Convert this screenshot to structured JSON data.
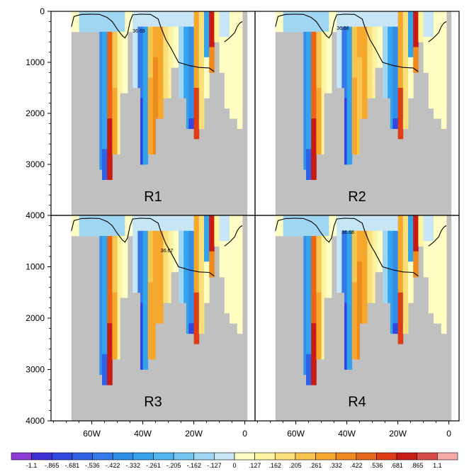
{
  "chart_data": {
    "type": "heatmap",
    "panels": [
      {
        "label": "R1",
        "contour_label": "36.69"
      },
      {
        "label": "R2",
        "contour_label": "36.68"
      },
      {
        "label": "R3",
        "contour_label": "36.67"
      },
      {
        "label": "R4",
        "contour_label": "36.68"
      }
    ],
    "x_ticks": [
      "60W",
      "40W",
      "20W",
      "0"
    ],
    "x_tick_values": [
      -60,
      -40,
      -20,
      0
    ],
    "xlim": [
      -76,
      4
    ],
    "y_ticks": [
      "0",
      "1000",
      "2000",
      "3000",
      "4000"
    ],
    "y_tick_values": [
      0,
      1000,
      2000,
      3000,
      4000
    ],
    "ylim": [
      0,
      4000
    ],
    "y_reversed": true,
    "colorbar": {
      "labels": [
        "-1.1",
        "-.865",
        "-.681",
        "-.536",
        "-.422",
        "-.332",
        "-.261",
        "-.205",
        "-.162",
        "-.127",
        "0",
        ".127",
        ".162",
        ".205",
        ".261",
        ".332",
        ".422",
        ".536",
        ".681",
        ".865",
        "1.1"
      ],
      "colors": [
        "#8c3dd6",
        "#3b2fd6",
        "#3048e0",
        "#2f62e6",
        "#3579e8",
        "#2f8ee8",
        "#35a3ec",
        "#4fb6ee",
        "#74c5f0",
        "#a0d6f2",
        "#c6e6f6",
        "#fefec4",
        "#fdf3a0",
        "#fbe079",
        "#f8c54e",
        "#f5a82d",
        "#ef8a1f",
        "#e8661a",
        "#de3d17",
        "#c81b13",
        "#d94b4b",
        "#f5aaa8"
      ]
    },
    "land_color": "#c0c0c0",
    "bottom_depth_segments": [
      {
        "x": [
          -68,
          -57
        ],
        "depth": 400
      },
      {
        "x": [
          -57,
          -56
        ],
        "depth": 3100
      },
      {
        "x": [
          -56,
          -52
        ],
        "depth": 3250
      },
      {
        "x": [
          -52,
          -49
        ],
        "depth": 2800
      },
      {
        "x": [
          -49,
          -46
        ],
        "depth": 1600
      },
      {
        "x": [
          -46,
          -44
        ],
        "depth": 400
      },
      {
        "x": [
          -44,
          -41
        ],
        "depth": 1500
      },
      {
        "x": [
          -41,
          -38
        ],
        "depth": 3000
      },
      {
        "x": [
          -38,
          -35
        ],
        "depth": 2800
      },
      {
        "x": [
          -35,
          -32
        ],
        "depth": 2100
      },
      {
        "x": [
          -32,
          -29
        ],
        "depth": 1700
      },
      {
        "x": [
          -29,
          -26
        ],
        "depth": 1100
      },
      {
        "x": [
          -26,
          -23
        ],
        "depth": 1700
      },
      {
        "x": [
          -23,
          -20
        ],
        "depth": 2300
      },
      {
        "x": [
          -20,
          -18
        ],
        "depth": 2500
      },
      {
        "x": [
          -18,
          -16
        ],
        "depth": 2300
      },
      {
        "x": [
          -16,
          -14
        ],
        "depth": 1700
      },
      {
        "x": [
          -14,
          -12
        ],
        "depth": 1200
      },
      {
        "x": [
          -12,
          -10
        ],
        "depth": 600
      },
      {
        "x": [
          -10,
          -8
        ],
        "depth": 1200
      },
      {
        "x": [
          -8,
          -6
        ],
        "depth": 1900
      },
      {
        "x": [
          -6,
          -3
        ],
        "depth": 2100
      },
      {
        "x": [
          -3,
          -1
        ],
        "depth": 2300
      }
    ],
    "contour_line": [
      [
        -68,
        300
      ],
      [
        -67,
        100
      ],
      [
        -64,
        60
      ],
      [
        -60,
        55
      ],
      [
        -57,
        60
      ],
      [
        -54,
        120
      ],
      [
        -52,
        200
      ],
      [
        -50,
        350
      ],
      [
        -48,
        480
      ],
      [
        -47,
        520
      ],
      [
        -46,
        440
      ],
      [
        -45,
        200
      ],
      [
        -44,
        70
      ],
      [
        -41,
        55
      ],
      [
        -37,
        60
      ],
      [
        -34,
        150
      ],
      [
        -33,
        300
      ],
      [
        -31,
        550
      ],
      [
        -29,
        720
      ],
      [
        -26,
        1000
      ],
      [
        -22,
        1060
      ],
      [
        -18,
        1100
      ],
      [
        -14,
        1110
      ],
      [
        -12,
        1180
      ]
    ],
    "contour_line_east": [
      [
        -8,
        600
      ],
      [
        -6,
        520
      ],
      [
        -4,
        420
      ],
      [
        -3,
        300
      ],
      [
        -2,
        230
      ],
      [
        -1,
        200
      ]
    ]
  }
}
